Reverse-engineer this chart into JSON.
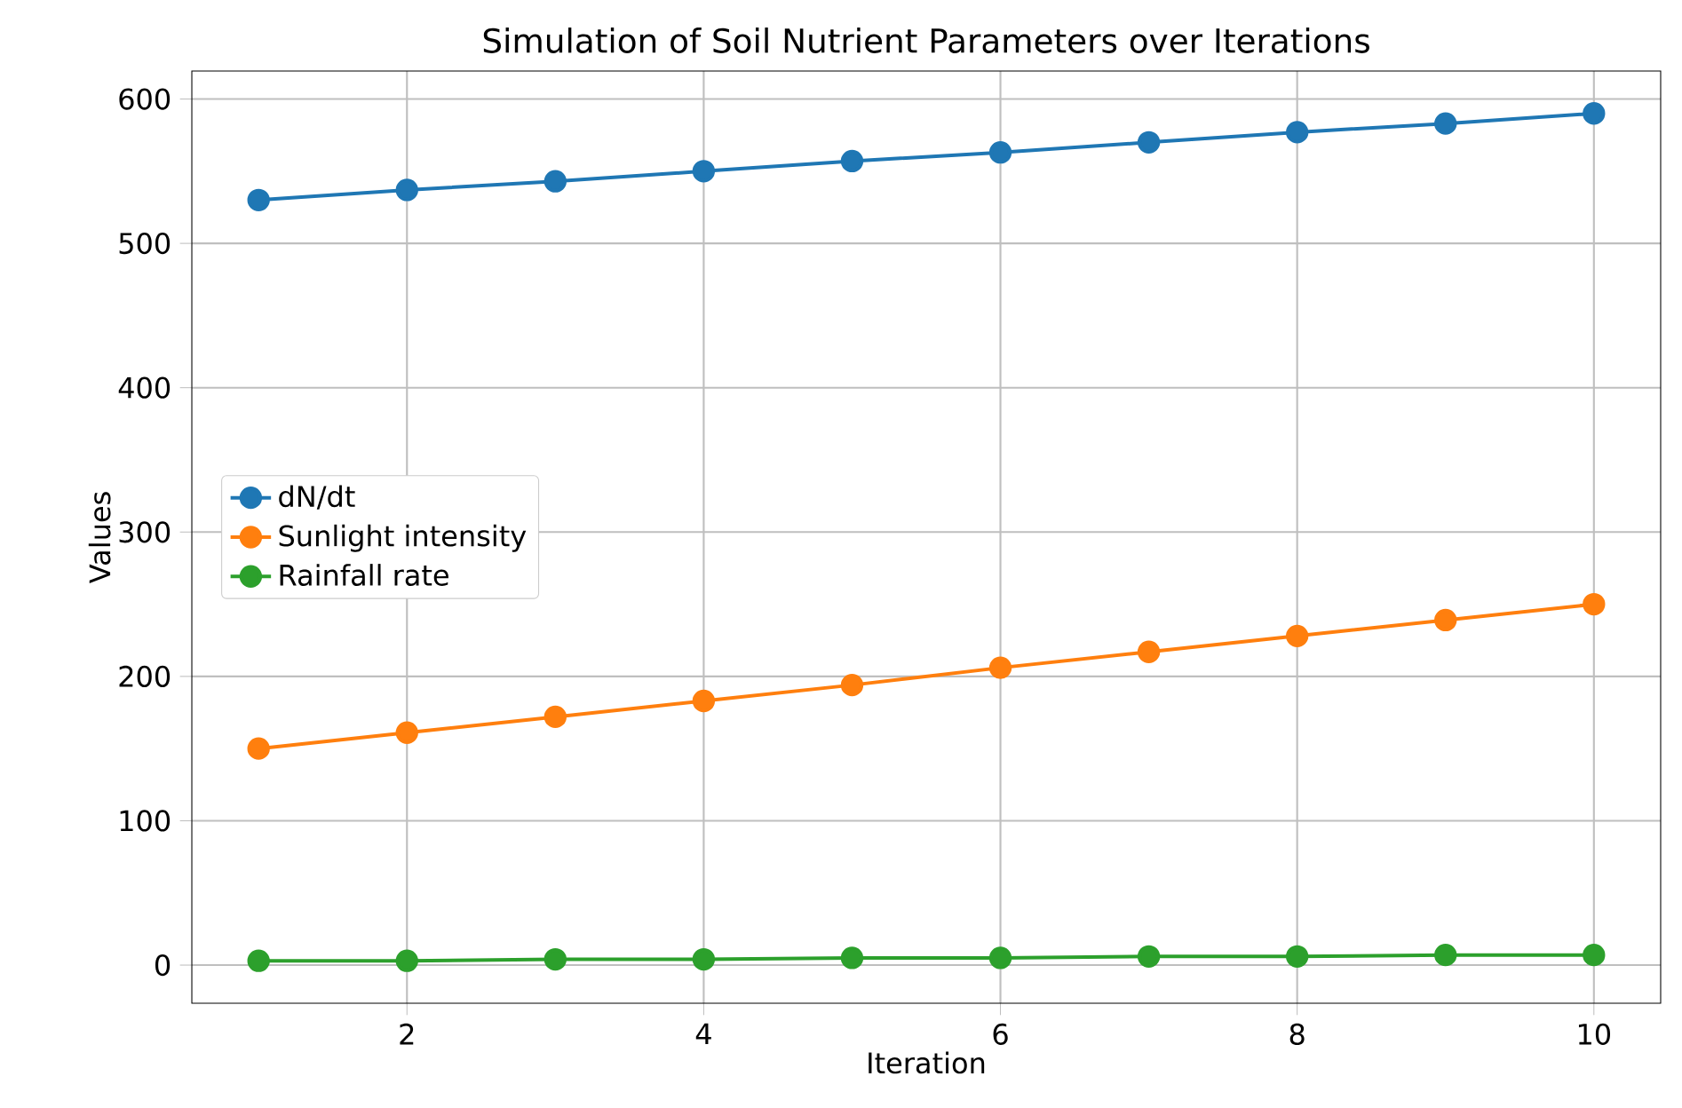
{
  "chart_data": {
    "type": "line",
    "title": "Simulation of Soil Nutrient Parameters over Iterations",
    "xlabel": "Iteration",
    "ylabel": "Values",
    "x": [
      1,
      2,
      3,
      4,
      5,
      6,
      7,
      8,
      9,
      10
    ],
    "series": [
      {
        "name": "dN/dt",
        "color": "#1f77b4",
        "values": [
          530,
          537,
          543,
          550,
          557,
          563,
          570,
          577,
          583,
          590
        ]
      },
      {
        "name": "Sunlight intensity",
        "color": "#ff7f0e",
        "values": [
          150,
          161,
          172,
          183,
          194,
          206,
          217,
          228,
          239,
          250
        ]
      },
      {
        "name": "Rainfall rate",
        "color": "#2ca02c",
        "values": [
          3,
          3,
          4,
          4,
          5,
          5,
          6,
          6,
          7,
          7
        ]
      }
    ],
    "xlim": [
      0.55,
      10.45
    ],
    "ylim": [
      -26.4,
      619.4
    ],
    "xticks": [
      2,
      4,
      6,
      8,
      10
    ],
    "yticks": [
      0,
      100,
      200,
      300,
      400,
      500,
      600
    ],
    "grid": true,
    "legend": "center left",
    "marker": "circle",
    "line_style": "solid"
  }
}
